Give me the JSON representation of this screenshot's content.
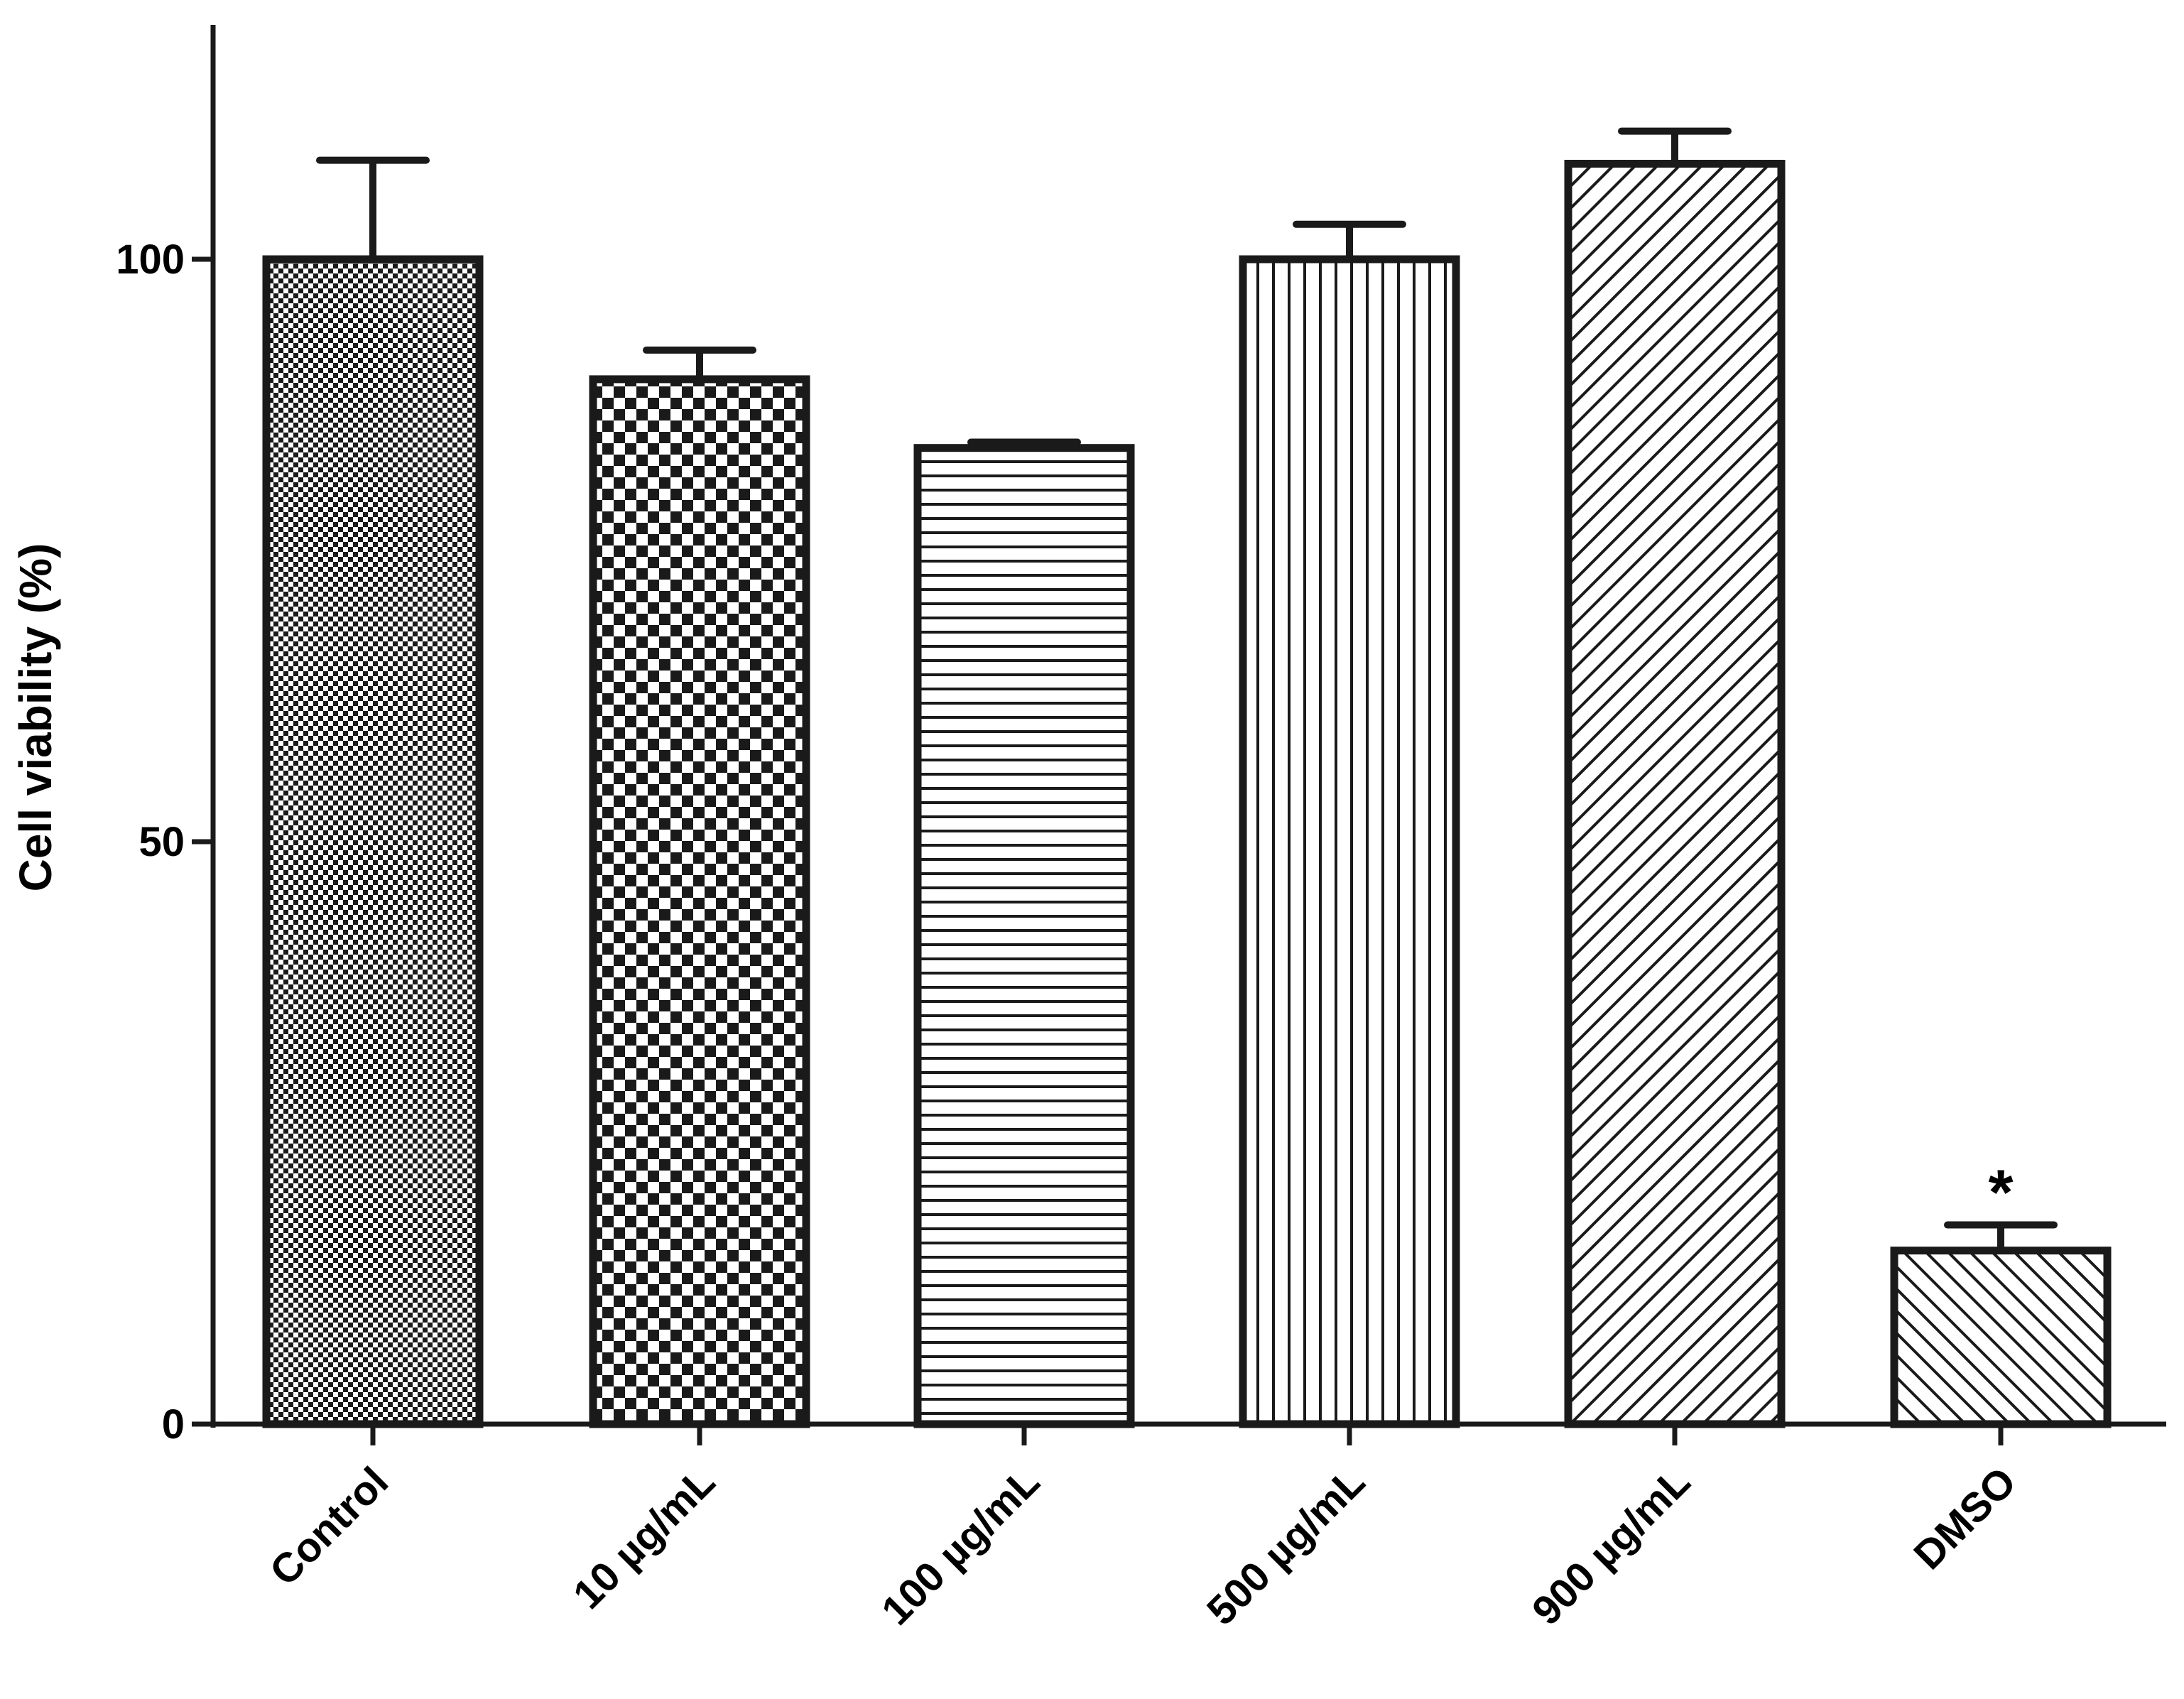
{
  "chart_data": {
    "type": "bar",
    "title": "",
    "xlabel": "",
    "ylabel": "Cell viability (%)",
    "ylim": [
      0,
      120
    ],
    "yticks": [
      0,
      50,
      100
    ],
    "ytick_labels": [
      "0",
      "50",
      "100"
    ],
    "categories": [
      "Control",
      "10 µg/mL",
      "100 µg/mL",
      "500 µg/mL",
      "900 µg/mL",
      "DMSO"
    ],
    "values": [
      100,
      89.7,
      83.8,
      100,
      108.2,
      14.9
    ],
    "errors": [
      8.5,
      2.5,
      0.5,
      3.0,
      2.8,
      2.2
    ],
    "patterns": [
      "fine-checker",
      "checker",
      "horizontal-lines",
      "vertical-lines",
      "diagonal-right",
      "diagonal-left"
    ],
    "annotations": [
      {
        "category": "DMSO",
        "text": "*"
      }
    ],
    "grid": false,
    "legend": "none",
    "colors": {
      "stroke": "#1a1a1a",
      "fill": "#ffffff"
    }
  }
}
